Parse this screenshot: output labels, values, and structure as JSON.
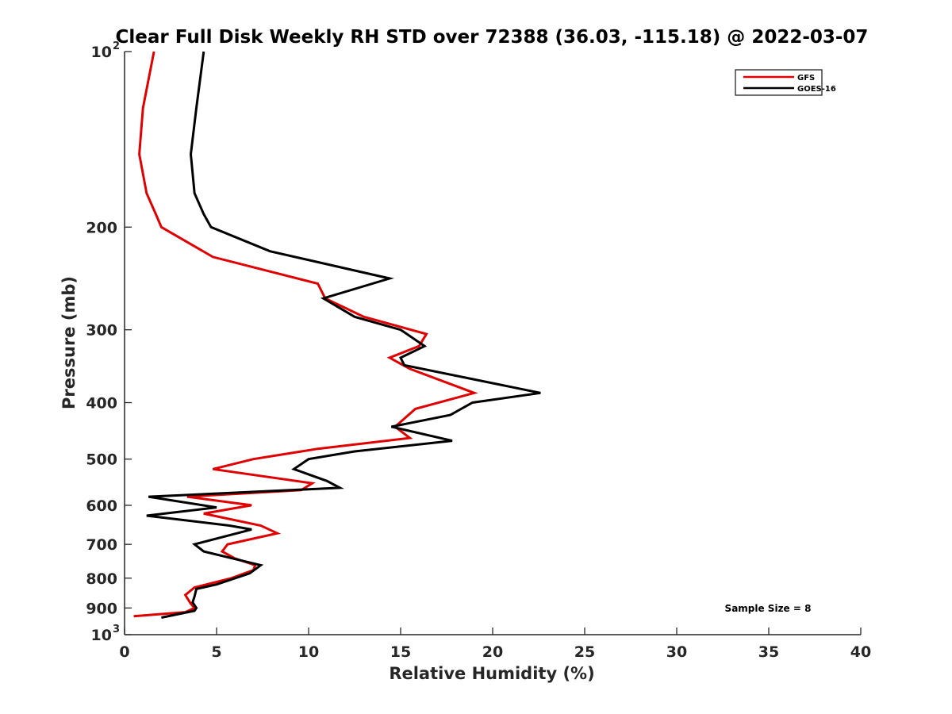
{
  "chart_data": {
    "type": "line",
    "title": "Clear Full Disk Weekly RH STD over 72388 (36.03, -115.18) @ 2022-03-07",
    "xlabel": "Relative Humidity (%)",
    "ylabel": "Pressure (mb)",
    "xlim": [
      0,
      40
    ],
    "ylim": [
      100,
      1000
    ],
    "y_scale": "log",
    "y_reversed": true,
    "grid": false,
    "legend_position": "top-right",
    "x_ticks": [
      "0",
      "5",
      "10",
      "15",
      "20",
      "25",
      "30",
      "35",
      "40"
    ],
    "y_ticks": [
      {
        "value": 100,
        "label": "10",
        "sup": "2"
      },
      {
        "value": 200,
        "label": "200",
        "sup": ""
      },
      {
        "value": 300,
        "label": "300",
        "sup": ""
      },
      {
        "value": 400,
        "label": "400",
        "sup": ""
      },
      {
        "value": 500,
        "label": "500",
        "sup": ""
      },
      {
        "value": 600,
        "label": "600",
        "sup": ""
      },
      {
        "value": 700,
        "label": "700",
        "sup": ""
      },
      {
        "value": 800,
        "label": "800",
        "sup": ""
      },
      {
        "value": 900,
        "label": "900",
        "sup": ""
      },
      {
        "value": 1000,
        "label": "10",
        "sup": "3"
      }
    ],
    "annotation": "Sample Size = 8",
    "series": [
      {
        "name": "GFS",
        "color": "#e00000",
        "points": [
          [
            1.6,
            100
          ],
          [
            1.0,
            125
          ],
          [
            0.8,
            150
          ],
          [
            1.2,
            175
          ],
          [
            1.7,
            190
          ],
          [
            2.0,
            200
          ],
          [
            4.8,
            225
          ],
          [
            10.5,
            250
          ],
          [
            10.9,
            265
          ],
          [
            13,
            285
          ],
          [
            16.4,
            305
          ],
          [
            16.0,
            320
          ],
          [
            14.4,
            335
          ],
          [
            15.5,
            350
          ],
          [
            19.0,
            385
          ],
          [
            15.8,
            410
          ],
          [
            14.7,
            440
          ],
          [
            15.5,
            460
          ],
          [
            10.5,
            480
          ],
          [
            7.0,
            500
          ],
          [
            4.8,
            520
          ],
          [
            10.2,
            550
          ],
          [
            9.6,
            565
          ],
          [
            3.4,
            580
          ],
          [
            6.9,
            600
          ],
          [
            4.3,
            620
          ],
          [
            7.4,
            650
          ],
          [
            8.3,
            670
          ],
          [
            5.6,
            700
          ],
          [
            5.3,
            720
          ],
          [
            6.0,
            740
          ],
          [
            7.1,
            760
          ],
          [
            7.0,
            775
          ],
          [
            5.8,
            800
          ],
          [
            3.8,
            830
          ],
          [
            3.3,
            855
          ],
          [
            3.6,
            885
          ],
          [
            3.8,
            900
          ],
          [
            3.3,
            915
          ],
          [
            0.5,
            930
          ]
        ]
      },
      {
        "name": "GOES-16",
        "color": "#000000",
        "points": [
          [
            4.3,
            100
          ],
          [
            3.9,
            125
          ],
          [
            3.6,
            150
          ],
          [
            3.8,
            175
          ],
          [
            4.3,
            190
          ],
          [
            4.7,
            200
          ],
          [
            7.9,
            220
          ],
          [
            14.4,
            245
          ],
          [
            10.8,
            265
          ],
          [
            12.5,
            285
          ],
          [
            15.0,
            300
          ],
          [
            16.3,
            320
          ],
          [
            15.0,
            335
          ],
          [
            15.2,
            345
          ],
          [
            22.6,
            385
          ],
          [
            18.9,
            400
          ],
          [
            17.7,
            420
          ],
          [
            14.5,
            440
          ],
          [
            17.8,
            465
          ],
          [
            12.5,
            485
          ],
          [
            10.0,
            500
          ],
          [
            9.2,
            520
          ],
          [
            11.0,
            545
          ],
          [
            11.7,
            560
          ],
          [
            1.3,
            580
          ],
          [
            5.0,
            605
          ],
          [
            1.2,
            625
          ],
          [
            5.7,
            650
          ],
          [
            6.9,
            660
          ],
          [
            3.8,
            700
          ],
          [
            4.3,
            720
          ],
          [
            7.4,
            760
          ],
          [
            6.8,
            785
          ],
          [
            5.0,
            820
          ],
          [
            3.9,
            835
          ],
          [
            3.8,
            860
          ],
          [
            3.7,
            880
          ],
          [
            3.9,
            900
          ],
          [
            3.8,
            910
          ],
          [
            2.0,
            935
          ]
        ]
      }
    ]
  }
}
